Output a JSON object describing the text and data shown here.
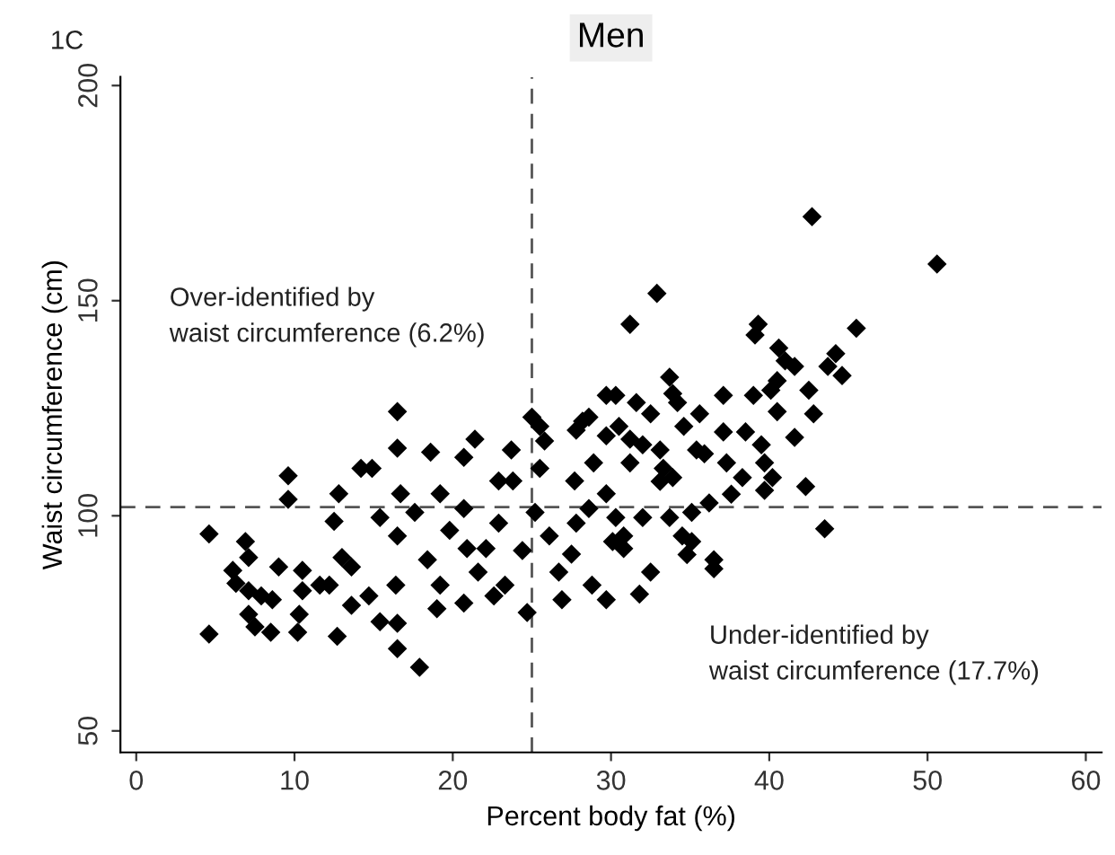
{
  "chart_data": {
    "type": "scatter",
    "title": "Men",
    "xlabel": "Percent body fat (%)",
    "ylabel": "Waist circumference (cm)",
    "annotations": [
      "1C",
      "Over-identified by\nwaist circumference (6.2%)",
      "Under-identified by\nwaist circumference (17.7%)"
    ],
    "marker": "diamond",
    "grid": false,
    "legend": false,
    "xlim": [
      -1,
      61
    ],
    "ylim": [
      45,
      202
    ],
    "xticks": [
      0,
      10,
      20,
      30,
      40,
      50,
      60
    ],
    "yticks": [
      50,
      100,
      150,
      200
    ],
    "ref_lines": [
      {
        "axis": "x",
        "value": 25,
        "line_style": "dashed",
        "color": "#555555"
      },
      {
        "axis": "y",
        "value": 102,
        "line_style": "dashed",
        "color": "#555555"
      }
    ],
    "series": [
      {
        "color": "#000000",
        "x": [
          42.7,
          50.6,
          32.9,
          31.2,
          39.3,
          39.1,
          45.5,
          40.6,
          41.0,
          41.6,
          44.2,
          43.7,
          44.6,
          40.5,
          40.1,
          39.0,
          37.1,
          42.5,
          42.8,
          40.5,
          41.6,
          42.3,
          43.5,
          33.7,
          33.9,
          34.2,
          30.3,
          31.6,
          32.5,
          35.6,
          34.6,
          37.1,
          38.5,
          39.5,
          39.7,
          40.2,
          38.3,
          39.7,
          37.6,
          36.2,
          35.1,
          35.1,
          36.5,
          33.1,
          31.2,
          35.4,
          37.3,
          33.9,
          4.6,
          4.6,
          6.9,
          7.1,
          6.1,
          6.3,
          7.1,
          7.9,
          8.6,
          9.0,
          7.1,
          7.5,
          8.5,
          9.6,
          9.6,
          10.5,
          10.5,
          10.3,
          10.2,
          11.6,
          12.2,
          12.7,
          12.8,
          12.5,
          13.0,
          13.6,
          13.6,
          14.2,
          14.9,
          14.7,
          15.4,
          15.4,
          16.5,
          16.7,
          16.5,
          16.4,
          16.5,
          16.5,
          17.9,
          17.6,
          18.6,
          19.2,
          18.4,
          19.2,
          19.0,
          19.8,
          20.7,
          21.4,
          20.7,
          20.9,
          20.7,
          21.6,
          22.9,
          23.7,
          23.8,
          22.9,
          22.1,
          23.3,
          22.6,
          24.4,
          24.7,
          25.0,
          25.8,
          25.5,
          25.2,
          26.1,
          26.7,
          26.9,
          27.8,
          28.2,
          27.7,
          27.8,
          27.5,
          28.8,
          28.9,
          29.7,
          30.1,
          30.8,
          31.2,
          30.5,
          29.7,
          31.8,
          25.5,
          28.6,
          29.7,
          16.5,
          32.0,
          33.1,
          33.7,
          30.8,
          34.8,
          32.5,
          29.7,
          33.3,
          35.9,
          32.0,
          28.6,
          30.3,
          36.5,
          34.5
        ],
        "values": [
          169.5,
          158.5,
          151.7,
          144.5,
          144.5,
          142,
          143.6,
          139,
          136,
          134.7,
          137.7,
          134.7,
          132.6,
          131.4,
          129.2,
          128,
          128,
          129.2,
          123.7,
          124.2,
          118.2,
          106.8,
          97,
          132.2,
          128.4,
          126.3,
          128,
          126.3,
          123.7,
          123.7,
          120.8,
          119.5,
          119.5,
          116.5,
          112.3,
          108.9,
          108.9,
          105.9,
          105,
          103,
          100.8,
          94,
          89.8,
          115.3,
          117.8,
          115.3,
          112.3,
          108.9,
          95.8,
          72.5,
          94,
          90.3,
          87.3,
          84.3,
          82.6,
          81.4,
          80.5,
          88.1,
          77.1,
          74.2,
          72.9,
          109.3,
          103.8,
          87.3,
          82.6,
          77.1,
          72.9,
          83.9,
          83.9,
          72,
          105.1,
          98.7,
          90.3,
          88.1,
          79.2,
          111,
          111,
          81.4,
          99.6,
          75.4,
          124.2,
          105.1,
          95.3,
          83.9,
          75,
          69.1,
          64.8,
          100.8,
          114.8,
          105.1,
          89.8,
          83.9,
          78.4,
          96.6,
          113.6,
          117.8,
          101.7,
          92.4,
          79.7,
          86.9,
          108.1,
          115.3,
          108.1,
          98.3,
          92.4,
          83.9,
          81.4,
          91.9,
          77.5,
          122.9,
          117.4,
          111,
          100.8,
          95.3,
          86.9,
          80.5,
          119.9,
          122,
          108.1,
          98.3,
          91.1,
          83.9,
          112.3,
          105.1,
          94,
          92.4,
          112.3,
          120.8,
          128,
          81.8,
          120.8,
          122.9,
          118.6,
          115.7,
          116.5,
          108,
          99.6,
          95.3,
          91,
          86.9,
          80.5,
          111,
          114.4,
          99.6,
          101.7,
          99.6,
          87.7,
          95.3
        ]
      }
    ]
  }
}
